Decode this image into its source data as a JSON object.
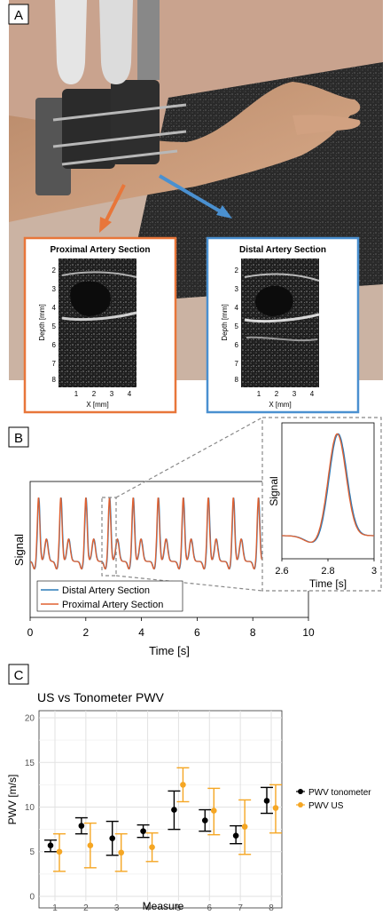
{
  "panel_a": {
    "label": "A",
    "insets": [
      {
        "title": "Proximal Artery Section",
        "ylabel": "Depth [mm]",
        "xlabel": "X [mm]",
        "yticks": [
          "2",
          "3",
          "4",
          "5",
          "6",
          "7",
          "8"
        ],
        "xticks": [
          "1",
          "2",
          "3",
          "4"
        ],
        "color": "#e8763a"
      },
      {
        "title": "Distal Artery Section",
        "ylabel": "Depth [mm]",
        "xlabel": "X [mm]",
        "yticks": [
          "2",
          "3",
          "4",
          "5",
          "6",
          "7",
          "8"
        ],
        "xticks": [
          "1",
          "2",
          "3",
          "4"
        ],
        "color": "#4a90d0"
      }
    ]
  },
  "panel_b": {
    "label": "B",
    "chart_data": {
      "type": "line",
      "xlabel": "Time [s]",
      "ylabel": "Signal",
      "xlim": [
        0,
        10
      ],
      "xticks": [
        "0",
        "2",
        "4",
        "6",
        "8",
        "10"
      ],
      "series": [
        {
          "name": "Distal Artery Section",
          "color": "#2a7ab8"
        },
        {
          "name": "Proximal Artery Section",
          "color": "#e06030"
        }
      ],
      "pulse_peaks_s": [
        0.3,
        1.1,
        2.0,
        2.85,
        3.7,
        4.6,
        5.5,
        6.4,
        7.3,
        8.2
      ],
      "inset": {
        "ylabel": "Signal",
        "xlabel": "Time [s]",
        "xlim": [
          2.6,
          3.0
        ],
        "xticks": [
          "2.6",
          "2.8",
          "3"
        ],
        "peak_s": 2.84
      }
    }
  },
  "panel_c": {
    "label": "C",
    "chart_data": {
      "type": "scatter",
      "title": "US vs Tonometer PWV",
      "xlabel": "Measure",
      "ylabel": "PWV [m/s]",
      "ylim": [
        0,
        20
      ],
      "yticks": [
        "0",
        "5",
        "10",
        "15",
        "20"
      ],
      "categories": [
        "1",
        "2",
        "3",
        "4",
        "5",
        "6",
        "7",
        "8"
      ],
      "series": [
        {
          "name": "PWV tonometer",
          "color": "#000000",
          "values": [
            5.7,
            7.9,
            6.5,
            7.3,
            9.7,
            8.5,
            6.8,
            10.7
          ],
          "err_low": [
            5.0,
            7.0,
            4.6,
            6.6,
            7.5,
            7.3,
            5.9,
            9.3
          ],
          "err_high": [
            6.3,
            8.8,
            8.4,
            8.0,
            11.8,
            9.7,
            7.9,
            12.2
          ]
        },
        {
          "name": "PWV US",
          "color": "#f5a623",
          "values": [
            5.0,
            5.7,
            4.9,
            5.5,
            12.5,
            9.6,
            7.8,
            9.9
          ],
          "err_low": [
            2.8,
            3.2,
            2.8,
            3.9,
            10.6,
            6.9,
            4.7,
            7.1
          ],
          "err_high": [
            7.0,
            8.2,
            7.0,
            7.1,
            14.4,
            12.1,
            10.8,
            12.5
          ]
        }
      ],
      "grid": true,
      "legend": "right"
    }
  }
}
